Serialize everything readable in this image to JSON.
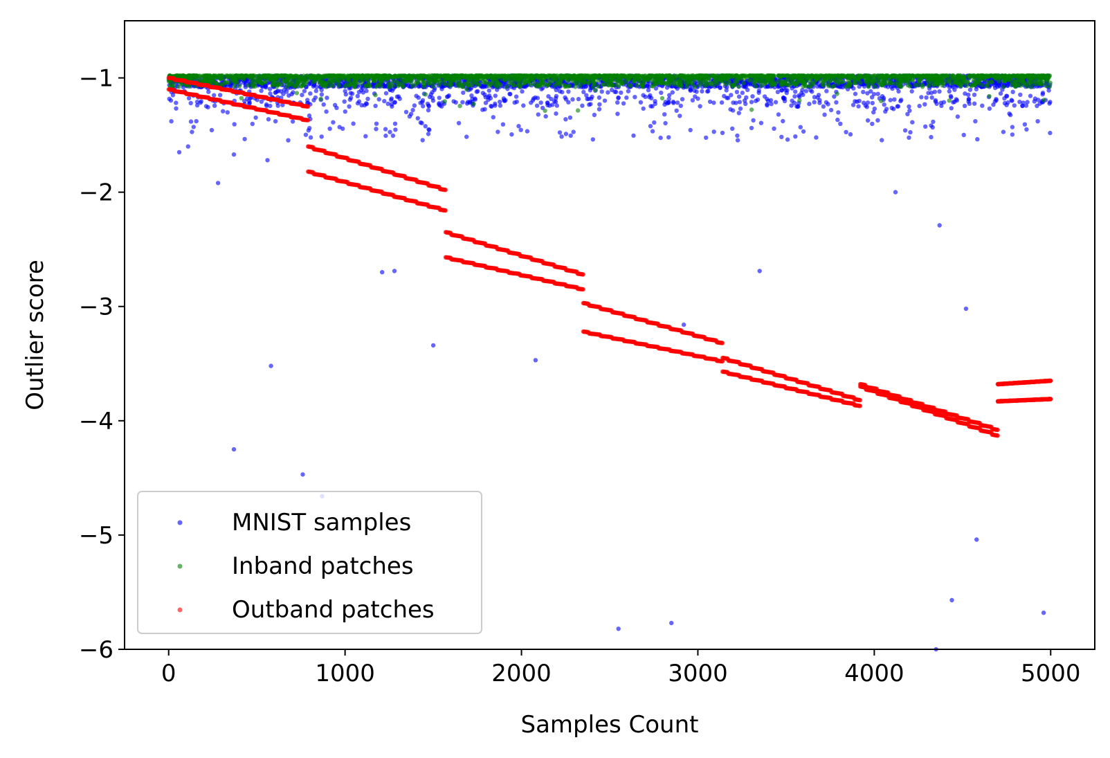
{
  "chart_data": {
    "type": "scatter",
    "title": "",
    "xlabel": "Samples Count",
    "ylabel": "Outlier score",
    "xlim": [
      -250,
      5250
    ],
    "ylim": [
      -6,
      -0.5
    ],
    "xticks": [
      0,
      1000,
      2000,
      3000,
      4000,
      5000
    ],
    "xtick_labels": [
      "0",
      "1000",
      "2000",
      "3000",
      "4000",
      "5000"
    ],
    "yticks": [
      -1,
      -2,
      -3,
      -4,
      -5,
      -6
    ],
    "ytick_labels": [
      "−1",
      "−2",
      "−3",
      "−4",
      "−5",
      "−6"
    ],
    "grid": false,
    "legend_position": "lower-left",
    "series": [
      {
        "name": "MNIST samples",
        "label": "MNIST samples",
        "color": "#0000ff",
        "opacity": 0.6,
        "n": 5000,
        "typical_range": [
          -1.25,
          -0.98
        ],
        "notable_outliers": [
          {
            "x": 60,
            "y": -1.65
          },
          {
            "x": 110,
            "y": -1.6
          },
          {
            "x": 280,
            "y": -1.92
          },
          {
            "x": 370,
            "y": -1.67
          },
          {
            "x": 370,
            "y": -4.25
          },
          {
            "x": 560,
            "y": -1.72
          },
          {
            "x": 580,
            "y": -3.52
          },
          {
            "x": 760,
            "y": -4.47
          },
          {
            "x": 870,
            "y": -4.66
          },
          {
            "x": 1210,
            "y": -2.7
          },
          {
            "x": 1280,
            "y": -2.69
          },
          {
            "x": 1500,
            "y": -3.34
          },
          {
            "x": 2080,
            "y": -3.47
          },
          {
            "x": 2550,
            "y": -5.82
          },
          {
            "x": 2850,
            "y": -5.77
          },
          {
            "x": 2920,
            "y": -3.16
          },
          {
            "x": 3350,
            "y": -2.69
          },
          {
            "x": 4120,
            "y": -2.0
          },
          {
            "x": 4370,
            "y": -2.29
          },
          {
            "x": 4440,
            "y": -5.57
          },
          {
            "x": 4520,
            "y": -3.02
          },
          {
            "x": 4580,
            "y": -5.04
          },
          {
            "x": 4960,
            "y": -5.68
          },
          {
            "x": 4350,
            "y": -6.0
          }
        ]
      },
      {
        "name": "Inband patches",
        "label": "Inband patches",
        "color": "#008000",
        "opacity": 0.6,
        "n": 5000,
        "typical_range": [
          -1.08,
          -0.98
        ]
      },
      {
        "name": "Outband patches",
        "label": "Outband patches",
        "color": "#ff0000",
        "opacity": 0.6,
        "n": 5000,
        "bands": [
          {
            "x_start": 0,
            "x_end": 790,
            "upper": [
              -1.0,
              -1.25
            ],
            "lower": [
              -1.1,
              -1.37
            ]
          },
          {
            "x_start": 790,
            "x_end": 1570,
            "upper": [
              -1.6,
              -1.98
            ],
            "lower": [
              -1.82,
              -2.16
            ]
          },
          {
            "x_start": 1570,
            "x_end": 2350,
            "upper": [
              -2.35,
              -2.72
            ],
            "lower": [
              -2.57,
              -2.85
            ]
          },
          {
            "x_start": 2350,
            "x_end": 3140,
            "upper": [
              -2.97,
              -3.32
            ],
            "lower": [
              -3.22,
              -3.48
            ]
          },
          {
            "x_start": 3140,
            "x_end": 3920,
            "upper": [
              -3.45,
              -3.82
            ],
            "lower": [
              -3.57,
              -3.87
            ]
          },
          {
            "x_start": 3920,
            "x_end": 4700,
            "upper": [
              -3.68,
              -4.08
            ],
            "lower": [
              -3.7,
              -4.13
            ]
          },
          {
            "x_start": 4700,
            "x_end": 5000,
            "upper": [
              -3.68,
              -3.65
            ],
            "lower": [
              -3.83,
              -3.81
            ]
          }
        ]
      }
    ]
  }
}
